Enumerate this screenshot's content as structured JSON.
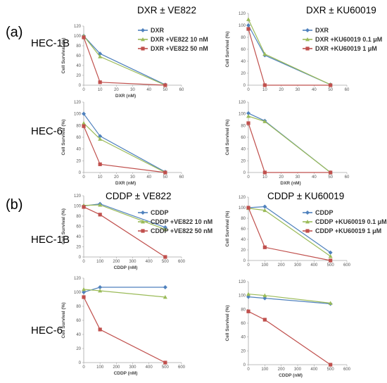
{
  "figure": {
    "labels": {
      "a": "(a)",
      "b": "(b)"
    },
    "rows": [
      "HEC-1B",
      "HEC-6",
      "HEC-1B",
      "HEC-6"
    ]
  },
  "colors": {
    "blue": "#4f81bd",
    "green": "#9bbb59",
    "red": "#c0504d",
    "axis": "#a6a6a6"
  },
  "chart_data": [
    {
      "id": "c1",
      "type": "line",
      "title": "DXR ± VE822",
      "xlabel": "DXR (nM)",
      "ylabel": "Cell Survival (%)",
      "xlim": [
        0,
        60
      ],
      "xticks": [
        0,
        10,
        20,
        30,
        40,
        50,
        60
      ],
      "ylim": [
        0,
        120
      ],
      "yticks": [
        0,
        20,
        40,
        60,
        80,
        100,
        120
      ],
      "legend": "right",
      "x": [
        0,
        10,
        50
      ],
      "series": [
        {
          "name": "DXR",
          "color": "#4f81bd",
          "marker": "diamond",
          "values": [
            100,
            64,
            1
          ]
        },
        {
          "name": "DXR +VE822 10 nM",
          "color": "#9bbb59",
          "marker": "triangle",
          "values": [
            100,
            58,
            0
          ]
        },
        {
          "name": "DXR +VE822 50 nM",
          "color": "#c0504d",
          "marker": "square",
          "values": [
            97,
            6,
            0
          ]
        }
      ]
    },
    {
      "id": "c2",
      "type": "line",
      "title": "DXR ± KU60019",
      "xlabel": "",
      "ylabel": "Cell Survival (%)",
      "xlim": [
        0,
        60
      ],
      "xticks": [
        0,
        10,
        20,
        30,
        40,
        50,
        60
      ],
      "ylim": [
        0,
        120
      ],
      "yticks": [
        0,
        20,
        40,
        60,
        80,
        100,
        120
      ],
      "legend": "right",
      "x": [
        0,
        10,
        50
      ],
      "series": [
        {
          "name": "DXR",
          "color": "#4f81bd",
          "marker": "diamond",
          "values": [
            100,
            50,
            1
          ]
        },
        {
          "name": "DXR +KU60019 0.1 μM",
          "color": "#9bbb59",
          "marker": "triangle",
          "values": [
            110,
            52,
            1
          ]
        },
        {
          "name": "DXR +KU60019 1 μM",
          "color": "#c0504d",
          "marker": "square",
          "values": [
            94,
            0,
            0
          ]
        }
      ]
    },
    {
      "id": "c3",
      "type": "line",
      "title": "",
      "xlabel": "DXR (nM)",
      "ylabel": "Cell Survival (%)",
      "xlim": [
        0,
        60
      ],
      "xticks": [
        0,
        10,
        20,
        30,
        40,
        50,
        60
      ],
      "ylim": [
        0,
        120
      ],
      "yticks": [
        0,
        20,
        40,
        60,
        80,
        100,
        120
      ],
      "x": [
        0,
        10,
        50
      ],
      "series": [
        {
          "name": "DXR",
          "color": "#4f81bd",
          "marker": "diamond",
          "values": [
            100,
            62,
            1
          ]
        },
        {
          "name": "DXR +VE822 10 nM",
          "color": "#9bbb59",
          "marker": "triangle",
          "values": [
            84,
            57,
            0
          ]
        },
        {
          "name": "DXR +VE822 50 nM",
          "color": "#c0504d",
          "marker": "square",
          "values": [
            79,
            14,
            0
          ]
        }
      ]
    },
    {
      "id": "c4",
      "type": "line",
      "title": "",
      "xlabel": "DXR (nM)",
      "ylabel": "Cell Survival (%)",
      "xlim": [
        0,
        60
      ],
      "xticks": [
        0,
        10,
        20,
        30,
        40,
        50,
        60
      ],
      "ylim": [
        0,
        120
      ],
      "yticks": [
        0,
        20,
        40,
        60,
        80,
        100,
        120
      ],
      "x": [
        0,
        10,
        50
      ],
      "series": [
        {
          "name": "DXR",
          "color": "#4f81bd",
          "marker": "diamond",
          "values": [
            101,
            88,
            0
          ]
        },
        {
          "name": "DXR +KU60019 0.1 μM",
          "color": "#9bbb59",
          "marker": "triangle",
          "values": [
            96,
            87,
            0
          ]
        },
        {
          "name": "DXR +KU60019 1 μM",
          "color": "#c0504d",
          "marker": "square",
          "values": [
            84,
            0,
            0
          ]
        }
      ]
    },
    {
      "id": "c5",
      "type": "line",
      "title": "CDDP ± VE822",
      "xlabel": "CDDP (nM)",
      "ylabel": "Cell Survival (%)",
      "xlim": [
        0,
        600
      ],
      "xticks": [
        0,
        100,
        200,
        300,
        400,
        500,
        600
      ],
      "ylim": [
        0,
        120
      ],
      "yticks": [
        0,
        20,
        40,
        60,
        80,
        100,
        120
      ],
      "legend": "right",
      "x": [
        0,
        100,
        500
      ],
      "series": [
        {
          "name": "CDDP",
          "color": "#4f81bd",
          "marker": "diamond",
          "values": [
            100,
            104,
            58
          ]
        },
        {
          "name": "CDDP +VE822 10 nM",
          "color": "#9bbb59",
          "marker": "triangle",
          "values": [
            101,
            102,
            54
          ]
        },
        {
          "name": "CDDP +VE822 50 nM",
          "color": "#c0504d",
          "marker": "square",
          "values": [
            98,
            83,
            0
          ]
        }
      ]
    },
    {
      "id": "c6",
      "type": "line",
      "title": "CDDP ± KU60019",
      "xlabel": "",
      "ylabel": "Cell Survival (%)",
      "xlim": [
        0,
        600
      ],
      "xticks": [
        0,
        100,
        200,
        300,
        400,
        500,
        600
      ],
      "ylim": [
        0,
        120
      ],
      "yticks": [
        0,
        20,
        40,
        60,
        80,
        100,
        120
      ],
      "legend": "right",
      "x": [
        0,
        100,
        500
      ],
      "series": [
        {
          "name": "CDDP",
          "color": "#4f81bd",
          "marker": "diamond",
          "values": [
            100,
            102,
            15
          ]
        },
        {
          "name": "CDDP +KU60019 0.1 μM",
          "color": "#9bbb59",
          "marker": "triangle",
          "values": [
            99,
            95,
            8
          ]
        },
        {
          "name": "CDDP +KU60019 1 μM",
          "color": "#c0504d",
          "marker": "square",
          "values": [
            100,
            25,
            0
          ]
        }
      ]
    },
    {
      "id": "c7",
      "type": "line",
      "title": "",
      "xlabel": "CDDP (nM)",
      "ylabel": "Cell Survival (%)",
      "xlim": [
        0,
        600
      ],
      "xticks": [
        0,
        100,
        200,
        300,
        400,
        500,
        600
      ],
      "ylim": [
        0,
        120
      ],
      "yticks": [
        0,
        20,
        40,
        60,
        80,
        100,
        120
      ],
      "x": [
        0,
        100,
        500
      ],
      "series": [
        {
          "name": "CDDP",
          "color": "#4f81bd",
          "marker": "diamond",
          "values": [
            100,
            107,
            107
          ]
        },
        {
          "name": "CDDP +VE822 10 nM",
          "color": "#9bbb59",
          "marker": "triangle",
          "values": [
            104,
            102,
            93
          ]
        },
        {
          "name": "CDDP +VE822 50 nM",
          "color": "#c0504d",
          "marker": "square",
          "values": [
            93,
            47,
            0
          ]
        }
      ]
    },
    {
      "id": "c8",
      "type": "line",
      "title": "",
      "xlabel": "CDDP (nM)",
      "ylabel": "Cell Survival (%)",
      "xlim": [
        0,
        600
      ],
      "xticks": [
        0,
        100,
        200,
        300,
        400,
        500,
        600
      ],
      "ylim": [
        0,
        120
      ],
      "yticks": [
        0,
        20,
        40,
        60,
        80,
        100,
        120
      ],
      "x": [
        0,
        100,
        500
      ],
      "series": [
        {
          "name": "CDDP",
          "color": "#4f81bd",
          "marker": "diamond",
          "values": [
            98,
            96,
            88
          ]
        },
        {
          "name": "CDDP +KU60019 0.1 μM",
          "color": "#9bbb59",
          "marker": "triangle",
          "values": [
            102,
            100,
            89
          ]
        },
        {
          "name": "CDDP +KU60019 1 μM",
          "color": "#c0504d",
          "marker": "square",
          "values": [
            77,
            65,
            0
          ]
        }
      ]
    }
  ]
}
